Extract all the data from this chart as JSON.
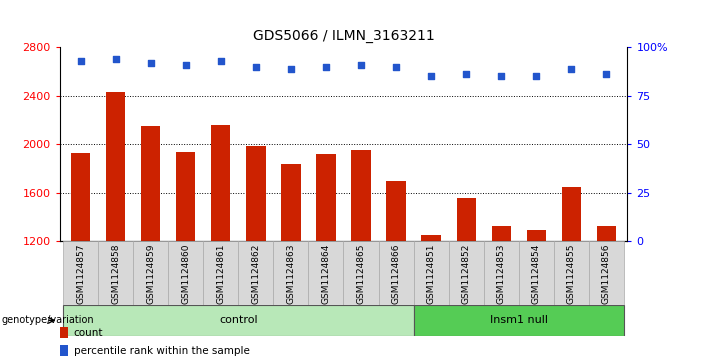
{
  "title": "GDS5066 / ILMN_3163211",
  "samples": [
    "GSM1124857",
    "GSM1124858",
    "GSM1124859",
    "GSM1124860",
    "GSM1124861",
    "GSM1124862",
    "GSM1124863",
    "GSM1124864",
    "GSM1124865",
    "GSM1124866",
    "GSM1124851",
    "GSM1124852",
    "GSM1124853",
    "GSM1124854",
    "GSM1124855",
    "GSM1124856"
  ],
  "counts": [
    1930,
    2430,
    2150,
    1940,
    2160,
    1990,
    1840,
    1920,
    1950,
    1700,
    1255,
    1560,
    1330,
    1295,
    1650,
    1330
  ],
  "percentile_ranks": [
    93,
    94,
    92,
    91,
    93,
    90,
    89,
    90,
    91,
    90,
    85,
    86,
    85,
    85,
    89,
    86
  ],
  "groups": [
    "control",
    "control",
    "control",
    "control",
    "control",
    "control",
    "control",
    "control",
    "control",
    "control",
    "Insm1 null",
    "Insm1 null",
    "Insm1 null",
    "Insm1 null",
    "Insm1 null",
    "Insm1 null"
  ],
  "control_color": "#b8e8b8",
  "insm1_color": "#55cc55",
  "bar_color": "#cc2200",
  "dot_color": "#2255cc",
  "ymin": 1200,
  "ymax": 2800,
  "yticks": [
    1200,
    1600,
    2000,
    2400,
    2800
  ],
  "right_yticks": [
    0,
    25,
    50,
    75,
    100
  ],
  "right_ylabels": [
    "0",
    "25",
    "50",
    "75",
    "100%"
  ],
  "genotype_label": "genotype/variation",
  "legend_count": "count",
  "legend_percentile": "percentile rank within the sample",
  "bg_color": "#d8d8d8"
}
